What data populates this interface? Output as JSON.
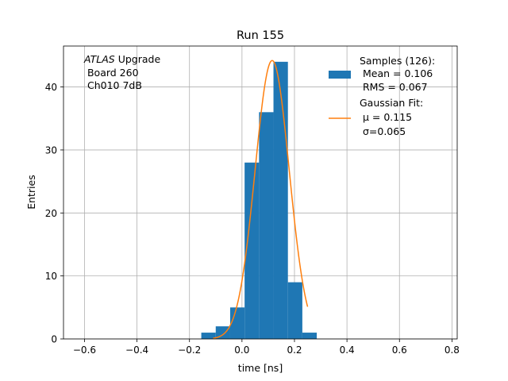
{
  "chart_data": {
    "type": "bar",
    "title": "Run 155",
    "xlabel": "time [ns]",
    "ylabel": "Entries",
    "xlim": [
      -0.68,
      0.82
    ],
    "ylim": [
      0,
      46.5
    ],
    "grid": true,
    "x_ticks": [
      -0.6,
      -0.4,
      -0.2,
      0.0,
      0.2,
      0.4,
      0.6,
      0.8
    ],
    "x_tick_labels": [
      "−0.6",
      "−0.4",
      "−0.2",
      "0.0",
      "0.2",
      "0.4",
      "0.6",
      "0.8"
    ],
    "y_ticks": [
      0,
      10,
      20,
      30,
      40
    ],
    "y_tick_labels": [
      "0",
      "10",
      "20",
      "30",
      "40"
    ],
    "histogram": {
      "bin_edges": [
        -0.155,
        -0.1,
        -0.045,
        0.01,
        0.065,
        0.12,
        0.175,
        0.23,
        0.285
      ],
      "counts": [
        1,
        2,
        5,
        28,
        36,
        44,
        9,
        1
      ],
      "color": "#1f77b4"
    },
    "fit": {
      "type": "gaussian",
      "mu": 0.115,
      "sigma": 0.065,
      "amplitude": 44.2,
      "x_range": [
        -0.11,
        0.25
      ],
      "color": "#ff7f0e"
    },
    "annotation": {
      "line1_italic": "ATLAS",
      "line1_rest": " Upgrade",
      "line2": " Board 260",
      "line3": " Ch010 7dB"
    },
    "legend": {
      "placement": "top-right",
      "entries": [
        {
          "lines": [
            "Samples (126):",
            " Mean = 0.106",
            " RMS = 0.067"
          ],
          "color": "#1f77b4",
          "kind": "patch"
        },
        {
          "lines": [
            "Gaussian Fit:",
            " μ = 0.115",
            " σ=0.065"
          ],
          "color": "#ff7f0e",
          "kind": "line"
        }
      ]
    }
  }
}
